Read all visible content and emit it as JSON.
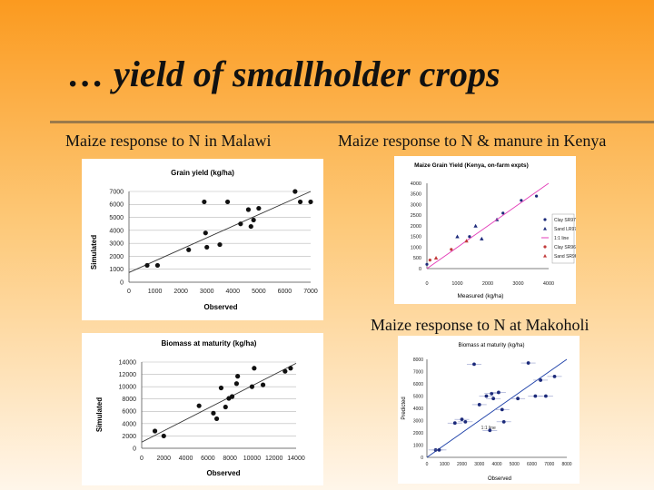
{
  "slide": {
    "title": "… yield of smallholder crops",
    "captions": {
      "malawi": "Maize response to N in Malawi",
      "kenya": "Maize response to N & manure in Kenya",
      "makoholi": "Maize response to N at Makoholi"
    }
  },
  "chart_data": [
    {
      "type": "scatter",
      "title": "Grain yield (kg/ha)",
      "xlabel": "Observed",
      "ylabel": "Simulated",
      "xlim": [
        0,
        7000
      ],
      "ylim": [
        0,
        7000
      ],
      "x_ticks": [
        "0",
        "1000",
        "2000",
        "3000",
        "4000",
        "5000",
        "6000",
        "7000"
      ],
      "y_ticks": [
        "0",
        "1000",
        "2000",
        "3000",
        "4000",
        "5000",
        "6000",
        "7000"
      ],
      "grid": true,
      "fit_line": [
        [
          0,
          750
        ],
        [
          7000,
          7000
        ]
      ],
      "points": [
        [
          700,
          1300
        ],
        [
          1100,
          1300
        ],
        [
          2300,
          2500
        ],
        [
          2900,
          6200
        ],
        [
          2950,
          3800
        ],
        [
          3000,
          2700
        ],
        [
          3500,
          2900
        ],
        [
          3800,
          6200
        ],
        [
          4300,
          4500
        ],
        [
          4600,
          5600
        ],
        [
          4700,
          4300
        ],
        [
          4800,
          4800
        ],
        [
          5000,
          5700
        ],
        [
          6400,
          7000
        ],
        [
          6600,
          6200
        ],
        [
          7000,
          6200
        ]
      ]
    },
    {
      "type": "scatter",
      "title": "Maize Grain Yield (Kenya, on-farm expts)",
      "xlabel": "Measured (kg/ha)",
      "ylabel": "",
      "xlim": [
        0,
        4000
      ],
      "ylim": [
        0,
        4000
      ],
      "x_ticks": [
        "0",
        "1000",
        "2000",
        "3000",
        "4000"
      ],
      "y_ticks": [
        "0",
        "500",
        "1000",
        "1500",
        "2000",
        "2500",
        "3000",
        "3500",
        "4000"
      ],
      "grid": false,
      "legend_position": "right",
      "series": [
        {
          "name": "Clay SR97",
          "marker": "dot",
          "color": "#1c2a7a",
          "points": [
            [
              0,
              200
            ],
            [
              1400,
              1500
            ],
            [
              2500,
              2600
            ],
            [
              3100,
              3200
            ],
            [
              3600,
              3400
            ]
          ]
        },
        {
          "name": "Sand LR97",
          "marker": "triangle",
          "color": "#1c2a7a",
          "points": [
            [
              1000,
              1500
            ],
            [
              1600,
              2000
            ],
            [
              1800,
              1400
            ],
            [
              2300,
              2300
            ]
          ]
        },
        {
          "name": "1:1 line",
          "marker": "line",
          "color": "#e33cb8",
          "points": [
            [
              0,
              0
            ],
            [
              4000,
              4000
            ]
          ]
        },
        {
          "name": "Clay SR96",
          "marker": "dot",
          "color": "#c23a3a",
          "points": [
            [
              100,
              400
            ],
            [
              800,
              900
            ]
          ]
        },
        {
          "name": "Sand SR96",
          "marker": "triangle",
          "color": "#c23a3a",
          "points": [
            [
              300,
              500
            ],
            [
              1300,
              1300
            ]
          ]
        }
      ]
    },
    {
      "type": "scatter",
      "title": "Biomass at maturity (kg/ha)",
      "xlabel": "Observed",
      "ylabel": "Simulated",
      "xlim": [
        0,
        14000
      ],
      "ylim": [
        0,
        14000
      ],
      "x_ticks": [
        "0",
        "2000",
        "4000",
        "6000",
        "8000",
        "10000",
        "12000",
        "14000"
      ],
      "y_ticks": [
        "0",
        "2000",
        "4000",
        "6000",
        "8000",
        "10000",
        "12000",
        "14000"
      ],
      "grid": true,
      "fit_line": [
        [
          0,
          1000
        ],
        [
          14000,
          13800
        ]
      ],
      "points": [
        [
          1200,
          2800
        ],
        [
          2000,
          2000
        ],
        [
          5200,
          6900
        ],
        [
          6500,
          5700
        ],
        [
          6800,
          4800
        ],
        [
          7200,
          9800
        ],
        [
          7600,
          6700
        ],
        [
          7900,
          8100
        ],
        [
          8200,
          8400
        ],
        [
          8600,
          10500
        ],
        [
          8700,
          11700
        ],
        [
          10000,
          10000
        ],
        [
          10200,
          13000
        ],
        [
          11000,
          10300
        ],
        [
          13000,
          12500
        ],
        [
          13500,
          13000
        ]
      ]
    },
    {
      "type": "scatter",
      "title": "Biomass at maturity (kg/ha)",
      "xlabel": "Observed",
      "ylabel": "Predicted",
      "xlim": [
        0,
        8000
      ],
      "ylim": [
        0,
        8000
      ],
      "x_ticks": [
        "0",
        "1000",
        "2000",
        "3000",
        "4000",
        "5000",
        "6000",
        "7000",
        "8000"
      ],
      "y_ticks": [
        "0",
        "1000",
        "2000",
        "3000",
        "4000",
        "5000",
        "6000",
        "7000",
        "8000"
      ],
      "grid": false,
      "line_label": "1:1 line",
      "points": [
        [
          500,
          600
        ],
        [
          700,
          600
        ],
        [
          1600,
          2800
        ],
        [
          2000,
          3100
        ],
        [
          2200,
          2900
        ],
        [
          2700,
          7600
        ],
        [
          3000,
          4300
        ],
        [
          3400,
          5000
        ],
        [
          3600,
          2200
        ],
        [
          3700,
          5200
        ],
        [
          3800,
          4800
        ],
        [
          4100,
          5300
        ],
        [
          4300,
          3900
        ],
        [
          4400,
          2900
        ],
        [
          5200,
          4800
        ],
        [
          5800,
          7700
        ],
        [
          6200,
          5000
        ],
        [
          6500,
          6300
        ],
        [
          6800,
          5000
        ],
        [
          7300,
          6600
        ]
      ]
    }
  ]
}
